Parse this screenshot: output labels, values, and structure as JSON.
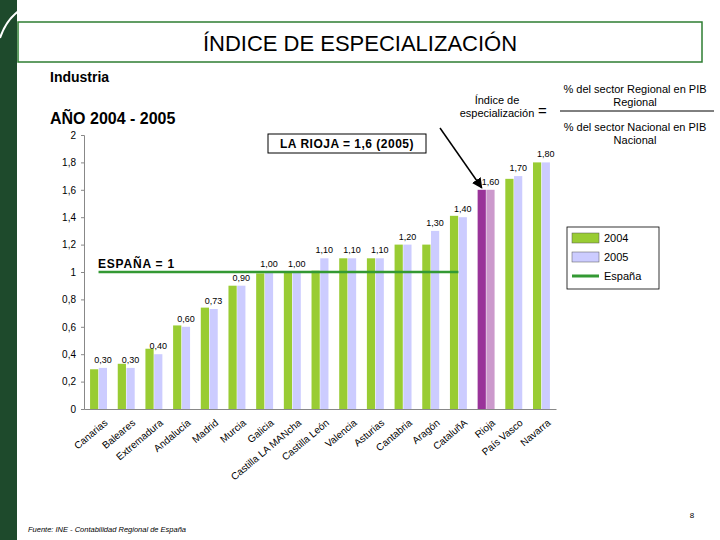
{
  "chart_data": {
    "type": "bar",
    "title": "ÍNDICE DE ESPECIALIZACIÓN",
    "subtitle": "Industria",
    "annotations": [
      "AÑO 2004 - 2005",
      "Índice de especialización",
      "=",
      "% del sector Regional en PIB Regional",
      "% del sector Nacional en PIB Nacional",
      "LA RIOJA = 1,6 (2005)",
      "ESPAÑA = 1",
      "Fuente: INE - Contabilidad Regional de España",
      "8"
    ],
    "categories": [
      "Canarias",
      "Baleares",
      "Extremadura",
      "Andalucía",
      "Madrid",
      "Murcia",
      "Galicia",
      "Castilla LA MANcha",
      "Castilla León",
      "Valencia",
      "Asturias",
      "Cantabria",
      "Aragón",
      "CataluñA",
      "Rioja",
      "País Vasco",
      "Navarra"
    ],
    "series": [
      {
        "name": "2004",
        "color": "#99cc33",
        "colors": [
          "#99cc33",
          "#99cc33",
          "#99cc33",
          "#99cc33",
          "#99cc33",
          "#99cc33",
          "#99cc33",
          "#99cc33",
          "#99cc33",
          "#99cc33",
          "#99cc33",
          "#99cc33",
          "#99cc33",
          "#99cc33",
          "#993399",
          "#99cc33",
          "#99cc33"
        ],
        "values": [
          0.29,
          0.33,
          0.44,
          0.61,
          0.74,
          0.9,
          0.99,
          1.0,
          1.01,
          1.1,
          1.1,
          1.2,
          1.2,
          1.41,
          1.6,
          1.68,
          1.8
        ]
      },
      {
        "name": "2005",
        "color": "#ccccff",
        "colors": [
          "#ccccff",
          "#ccccff",
          "#ccccff",
          "#ccccff",
          "#ccccff",
          "#ccccff",
          "#ccccff",
          "#ccccff",
          "#ccccff",
          "#ccccff",
          "#ccccff",
          "#ccccff",
          "#ccccff",
          "#ccccff",
          "#cc99cc",
          "#ccccff",
          "#ccccff"
        ],
        "values": [
          0.3,
          0.3,
          0.4,
          0.6,
          0.73,
          0.9,
          1.0,
          1.0,
          1.1,
          1.1,
          1.1,
          1.2,
          1.3,
          1.4,
          1.6,
          1.7,
          1.8
        ],
        "value_labels": [
          "0,30",
          "0,30",
          "0,40",
          "0,60",
          "0,73",
          "0,90",
          "1,00",
          "1,00",
          "1,10",
          "1,10",
          "1,10",
          "1,20",
          "1,30",
          "1,40",
          "1,60",
          "1,70",
          "1,80"
        ]
      },
      {
        "name": "España",
        "type": "line",
        "color": "#339933",
        "values": [
          1,
          1,
          1,
          1,
          1,
          1,
          1,
          1,
          1,
          1,
          1,
          1,
          1,
          1,
          null,
          null,
          null
        ]
      }
    ],
    "ylim": [
      0,
      2
    ],
    "yticks": [
      0,
      {
        "value": 0.2,
        "label": "0,2"
      },
      {
        "value": 0.4,
        "label": "0,4"
      },
      {
        "value": 0.6,
        "label": "0,6"
      },
      {
        "value": 0.8,
        "label": "0,8"
      },
      1,
      {
        "value": 1.2,
        "label": "1,2"
      },
      {
        "value": 1.4,
        "label": "1,4"
      },
      {
        "value": 1.6,
        "label": "1,6"
      },
      {
        "value": 1.8,
        "label": "1,8"
      },
      2
    ],
    "data_labels": true,
    "legend": "right",
    "grid": false
  }
}
